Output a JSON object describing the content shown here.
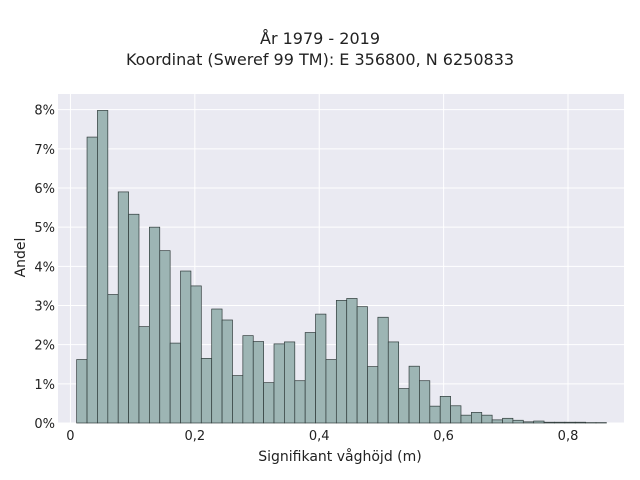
{
  "chart_data": {
    "type": "bar",
    "title": "År 1979 - 2019",
    "subtitle": "Koordinat (Sweref 99 TM): E 356800, N 6250833",
    "xlabel": "Signifikant våghöjd (m)",
    "ylabel": "Andel",
    "xlim": [
      -0.02,
      0.89
    ],
    "ylim": [
      0,
      8.4
    ],
    "x_ticks": [
      0,
      0.2,
      0.4,
      0.6,
      0.8
    ],
    "x_tick_labels": [
      "0",
      "0,2",
      "0,4",
      "0,6",
      "0,8"
    ],
    "y_ticks": [
      0,
      1,
      2,
      3,
      4,
      5,
      6,
      7,
      8
    ],
    "y_tick_labels": [
      "0%",
      "1%",
      "2%",
      "3%",
      "4%",
      "5%",
      "6%",
      "7%",
      "8%"
    ],
    "grid": true,
    "bin_width": 0.0167,
    "bin_start": 0.01,
    "values": [
      1.62,
      7.3,
      7.98,
      3.28,
      5.9,
      5.33,
      2.46,
      5.0,
      4.4,
      2.04,
      3.88,
      3.5,
      1.65,
      2.91,
      2.63,
      1.21,
      2.23,
      2.08,
      1.03,
      2.02,
      2.07,
      1.08,
      2.31,
      2.78,
      1.62,
      3.13,
      3.18,
      2.97,
      1.44,
      2.7,
      2.07,
      0.88,
      1.45,
      1.08,
      0.43,
      0.68,
      0.44,
      0.2,
      0.27,
      0.2,
      0.08,
      0.12,
      0.07,
      0.03,
      0.05,
      0.02,
      0.02,
      0.02,
      0.02,
      0.01,
      0.01
    ],
    "colors": {
      "bar_fill": "#9db5b4",
      "bar_stroke": "#2f3b3a",
      "plot_bg": "#eaeaf2",
      "grid": "#ffffff"
    }
  }
}
